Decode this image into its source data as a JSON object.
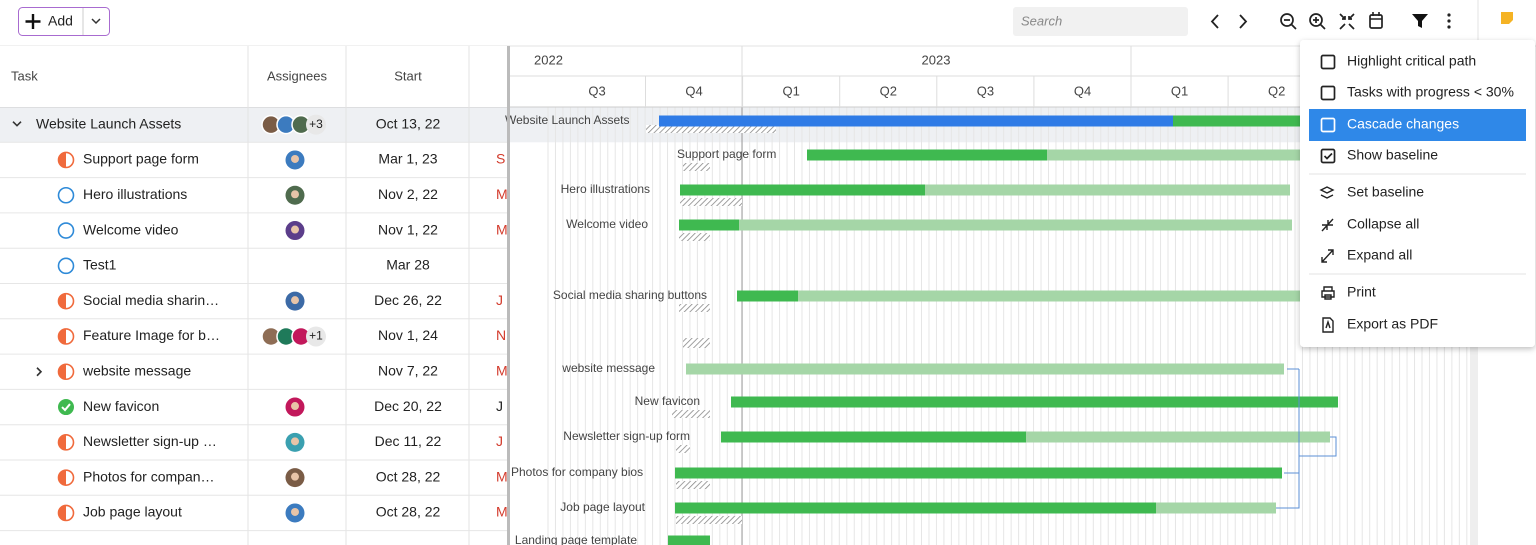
{
  "toolbar": {
    "add_button": "Add",
    "search_placeholder": "Search"
  },
  "grid": {
    "columns": [
      "Task",
      "Assignees",
      "Start"
    ],
    "rows": [
      {
        "task": "Website Launch Assets",
        "extra_assignees": "+3",
        "start": "Oct 13, 22"
      },
      {
        "task": "Support page form",
        "start": "Mar 1, 23",
        "next_column": "S"
      },
      {
        "task": "Hero illustrations",
        "start": "Nov 2, 22",
        "next_column": "M"
      },
      {
        "task": "Welcome video",
        "start": "Nov 1, 22",
        "next_column": "M"
      },
      {
        "task": "Test1",
        "start": "Mar 28"
      },
      {
        "task": "Social media sharin…",
        "start": "Dec 26, 22",
        "next_column": "J"
      },
      {
        "task": "Feature Image for b…",
        "extra_assignees": "+1",
        "start": "Nov 1, 24",
        "next_column": "N"
      },
      {
        "task": "website message",
        "start": "Nov 7, 22",
        "next_column": "M"
      },
      {
        "task": "New favicon",
        "start": "Dec 20, 22",
        "next_column": "J"
      },
      {
        "task": "Newsletter sign-up …",
        "start": "Dec 11, 22",
        "next_column": "J"
      },
      {
        "task": "Photos for compan…",
        "start": "Oct 28, 22",
        "next_column": "M"
      },
      {
        "task": "Job page layout",
        "start": "Oct 28, 22",
        "next_column": "M"
      }
    ]
  },
  "timeline": {
    "years": [
      "2022",
      "2023"
    ],
    "quarters": [
      "Q3",
      "Q4",
      "Q1",
      "Q2",
      "Q3",
      "Q4",
      "Q1",
      "Q2"
    ],
    "bar_labels": [
      "Website Launch Assets",
      "Support page form",
      "Hero illustrations",
      "Welcome video",
      "Social media sharing buttons",
      "website message",
      "New favicon",
      "Newsletter sign-up form",
      "Photos for company bios",
      "Job page layout",
      "Landing page template"
    ]
  },
  "menu": {
    "items": [
      "Highlight critical path",
      "Tasks with progress < 30%",
      "Cascade changes",
      "Show baseline",
      "Set baseline",
      "Collapse all",
      "Expand all",
      "Print",
      "Export as PDF"
    ]
  }
}
